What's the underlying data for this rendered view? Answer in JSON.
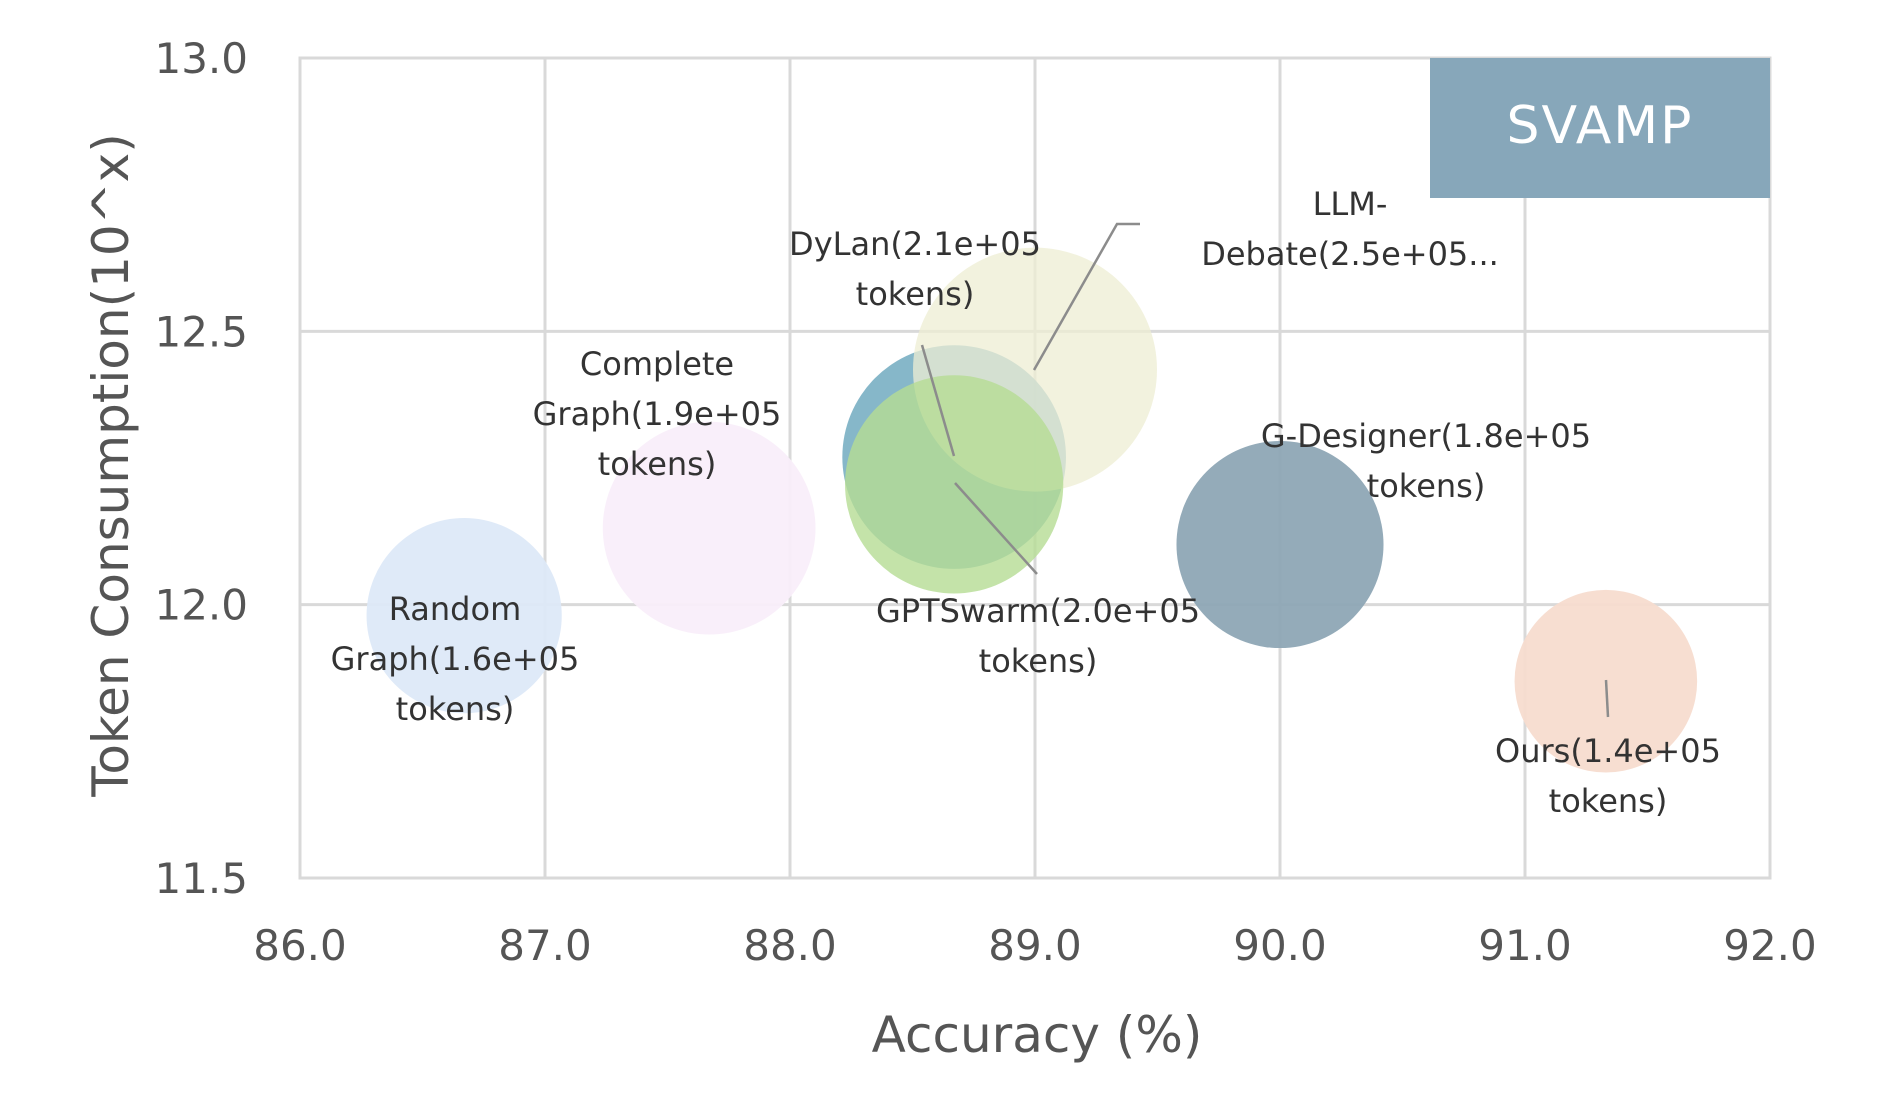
{
  "chart_data": {
    "type": "bubble",
    "title": "",
    "badge": "SVAMP",
    "xlabel": "Accuracy (%)",
    "ylabel": "Token Consumption(10^x)",
    "xlim": [
      86.0,
      92.0
    ],
    "ylim": [
      11.5,
      13.0
    ],
    "x_ticks": [
      "86.0",
      "87.0",
      "88.0",
      "89.0",
      "90.0",
      "91.0",
      "92.0"
    ],
    "y_ticks": [
      "11.5",
      "12.0",
      "12.5",
      "13.0"
    ],
    "grid": true,
    "points": [
      {
        "name": "Random Graph",
        "x": 86.67,
        "y": 11.98,
        "tokens": 160000,
        "label_lines": [
          "Random",
          "Graph(1.6e+05",
          "tokens)"
        ],
        "color": "#dde9f8"
      },
      {
        "name": "Complete Graph",
        "x": 87.67,
        "y": 12.14,
        "tokens": 190000,
        "label_lines": [
          "Complete",
          "Graph(1.9e+05",
          "tokens)"
        ],
        "color": "#f9eefa"
      },
      {
        "name": "DyLan",
        "x": 88.67,
        "y": 12.27,
        "tokens": 210000,
        "label_lines": [
          "DyLan(2.1e+05",
          "tokens)"
        ],
        "color": "#7fb3c6"
      },
      {
        "name": "LLM-Debate",
        "x": 89.0,
        "y": 12.43,
        "tokens": 250000,
        "label_lines": [
          "LLM-",
          "Debate(2.5e+05..."
        ],
        "color": "#eeeed3"
      },
      {
        "name": "GPTSwarm",
        "x": 88.67,
        "y": 12.22,
        "tokens": 200000,
        "label_lines": [
          "GPTSwarm(2.0e+05",
          "tokens)"
        ],
        "color": "#b5dc94"
      },
      {
        "name": "G-Designer",
        "x": 90.0,
        "y": 12.11,
        "tokens": 180000,
        "label_lines": [
          "G-Designer(1.8e+05",
          "tokens)"
        ],
        "color": "#8ea7b5"
      },
      {
        "name": "Ours",
        "x": 91.33,
        "y": 11.86,
        "tokens": 140000,
        "label_lines": [
          "Ours(1.4e+05",
          "tokens)"
        ],
        "color": "#f7dccf"
      }
    ]
  },
  "colors": {
    "badge": "#87a7ba",
    "grid": "#d9d9d9",
    "text": "#555555"
  }
}
